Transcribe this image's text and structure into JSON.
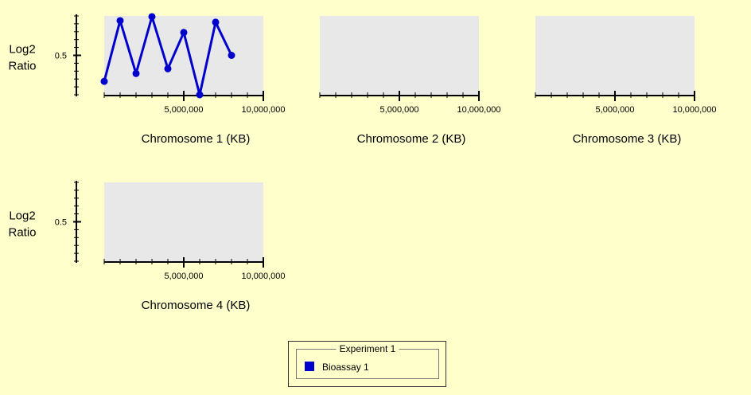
{
  "chart_data": [
    {
      "type": "line",
      "xlabel": "Chromosome 1 (KB)",
      "ylabel": "Log2 Ratio",
      "xlim": [
        0,
        10000000
      ],
      "ylim": [
        0,
        1.0
      ],
      "xticks": [
        "5,000,000",
        "10,000,000"
      ],
      "yticks": [
        "0.5"
      ],
      "series": [
        {
          "name": "Bioassay 1",
          "x": [
            0,
            1000000,
            2000000,
            3000000,
            4000000,
            5000000,
            6000000,
            7000000,
            8000000
          ],
          "y": [
            0.17,
            0.94,
            0.27,
            0.99,
            0.33,
            0.79,
            0.0,
            0.92,
            0.5
          ]
        }
      ]
    },
    {
      "type": "line",
      "xlabel": "Chromosome 2 (KB)",
      "xlim": [
        0,
        10000000
      ],
      "xticks": [
        "5,000,000",
        "10,000,000"
      ],
      "series": []
    },
    {
      "type": "line",
      "xlabel": "Chromosome 3 (KB)",
      "xlim": [
        0,
        10000000
      ],
      "xticks": [
        "5,000,000",
        "10,000,000"
      ],
      "series": []
    },
    {
      "type": "line",
      "xlabel": "Chromosome 4 (KB)",
      "ylabel": "Log2 Ratio",
      "xlim": [
        0,
        10000000
      ],
      "ylim": [
        0,
        1.0
      ],
      "xticks": [
        "5,000,000",
        "10,000,000"
      ],
      "yticks": [
        "0.5"
      ],
      "series": []
    }
  ],
  "legend": {
    "title": "Experiment 1",
    "items": [
      {
        "label": "Bioassay 1",
        "color": "#0000cc"
      }
    ]
  },
  "colors": {
    "plot_background": "#e8e8e8",
    "page_background": "#ffffcc",
    "series": "#0000cc",
    "axis": "#000000"
  }
}
